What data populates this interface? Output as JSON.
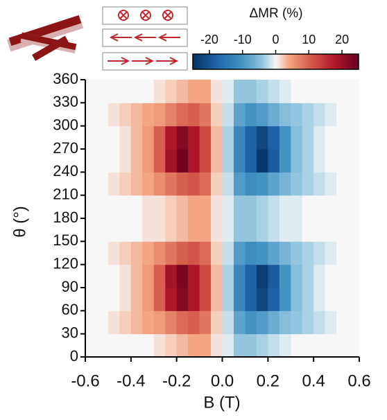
{
  "chart_data": {
    "type": "heatmap",
    "xlabel": "B (T)",
    "ylabel": "θ (°)",
    "x": [
      -0.575,
      -0.525,
      -0.475,
      -0.425,
      -0.375,
      -0.325,
      -0.275,
      -0.225,
      -0.175,
      -0.125,
      -0.075,
      -0.025,
      0.025,
      0.075,
      0.125,
      0.175,
      0.225,
      0.275,
      0.325,
      0.375,
      0.425,
      0.475,
      0.525,
      0.575
    ],
    "y": [
      15,
      45,
      75,
      105,
      135,
      165,
      195,
      225,
      255,
      285,
      315,
      345
    ],
    "values": [
      [
        0,
        0,
        0,
        0,
        0,
        0,
        1,
        2,
        3,
        4,
        4,
        1,
        -1,
        -4,
        -4,
        -3,
        -2,
        -1,
        0,
        0,
        0,
        0,
        0,
        0
      ],
      [
        0,
        0,
        1,
        2,
        3,
        4,
        5,
        7,
        9,
        10,
        8,
        2,
        -2,
        -8,
        -10,
        -9,
        -7,
        -5,
        -4,
        -3,
        -2,
        -1,
        0,
        0
      ],
      [
        0,
        0,
        0,
        1,
        3,
        5,
        10,
        18,
        22,
        18,
        12,
        3,
        -3,
        -12,
        -18,
        -22,
        -18,
        -10,
        -5,
        -3,
        -1,
        0,
        0,
        0
      ],
      [
        0,
        0,
        0,
        1,
        3,
        5,
        10,
        19,
        23,
        18,
        12,
        3,
        -3,
        -12,
        -18,
        -23,
        -19,
        -10,
        -5,
        -3,
        -1,
        0,
        0,
        0
      ],
      [
        0,
        0,
        1,
        2,
        3,
        4,
        6,
        8,
        10,
        11,
        9,
        2,
        -2,
        -9,
        -11,
        -10,
        -8,
        -6,
        -4,
        -3,
        -2,
        -1,
        0,
        0
      ],
      [
        0,
        0,
        0,
        0,
        0,
        1,
        1,
        2,
        3,
        4,
        4,
        1,
        -1,
        -4,
        -4,
        -3,
        -2,
        -1,
        -1,
        0,
        0,
        0,
        0,
        0
      ],
      [
        0,
        0,
        0,
        0,
        0,
        1,
        1,
        2,
        3,
        4,
        4,
        1,
        -1,
        -4,
        -4,
        -3,
        -2,
        -1,
        -1,
        0,
        0,
        0,
        0,
        0
      ],
      [
        0,
        0,
        1,
        2,
        3,
        4,
        6,
        8,
        10,
        11,
        9,
        2,
        -2,
        -9,
        -11,
        -10,
        -8,
        -6,
        -4,
        -3,
        -2,
        -1,
        0,
        0
      ],
      [
        0,
        0,
        0,
        1,
        3,
        5,
        10,
        19,
        24,
        18,
        12,
        3,
        -3,
        -12,
        -18,
        -24,
        -19,
        -10,
        -5,
        -3,
        -1,
        0,
        0,
        0
      ],
      [
        0,
        0,
        0,
        1,
        3,
        5,
        10,
        18,
        22,
        18,
        12,
        3,
        -3,
        -12,
        -18,
        -22,
        -18,
        -10,
        -5,
        -3,
        -1,
        0,
        0,
        0
      ],
      [
        0,
        0,
        1,
        2,
        3,
        4,
        5,
        7,
        9,
        10,
        8,
        2,
        -2,
        -8,
        -10,
        -9,
        -7,
        -5,
        -4,
        -3,
        -2,
        -1,
        0,
        0
      ],
      [
        0,
        0,
        0,
        0,
        0,
        0,
        1,
        2,
        3,
        4,
        4,
        1,
        -1,
        -4,
        -4,
        -3,
        -2,
        -1,
        0,
        0,
        0,
        0,
        0,
        0
      ]
    ],
    "xlim": [
      -0.6,
      0.6
    ],
    "xticks": [
      -0.6,
      -0.4,
      -0.2,
      {
        "value": 0,
        "label": "0.0"
      },
      0.2,
      0.4,
      0.6
    ],
    "ylim": [
      0,
      360
    ],
    "yticks": [
      0,
      30,
      60,
      90,
      120,
      150,
      180,
      210,
      240,
      270,
      300,
      330,
      360
    ],
    "colorbar": {
      "label": "ΔMR (%)",
      "lim": [
        -25,
        25
      ],
      "ticks": [
        -20,
        -10,
        0,
        10,
        20
      ]
    }
  }
}
